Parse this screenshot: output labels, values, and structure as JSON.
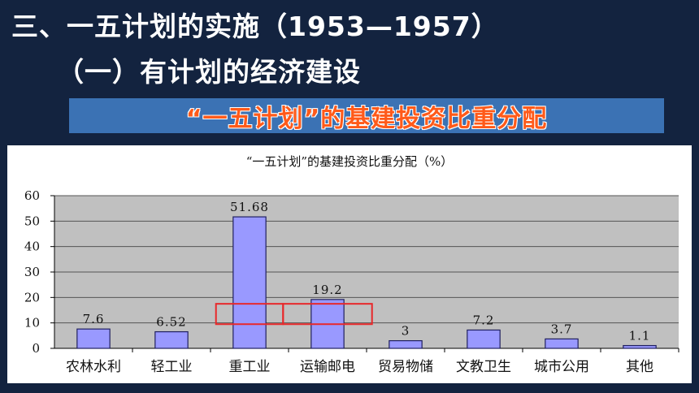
{
  "header": {
    "title": "三、一五计划的实施（1953—1957）",
    "subtitle": "（一）有计划的经济建设",
    "banner": "“一五计划”的基建投资比重分配"
  },
  "chart_data": {
    "type": "bar",
    "title": "“一五计划”的基建投资比重分配（%）",
    "categories": [
      "农林水利",
      "轻工业",
      "重工业",
      "运输邮电",
      "贸易物储",
      "文教卫生",
      "城市公用",
      "其他"
    ],
    "values": [
      7.6,
      6.52,
      51.68,
      19.2,
      3,
      7.2,
      3.7,
      1.1
    ],
    "value_labels": [
      "7.6",
      "6.52",
      "51.68",
      "19.2",
      "3",
      "7.2",
      "3.7",
      "1.1"
    ],
    "yticks": [
      "0",
      "10",
      "20",
      "30",
      "40",
      "50",
      "60"
    ],
    "ylim": [
      0,
      60
    ],
    "xlabel": "",
    "ylabel": "",
    "grid": true,
    "bar_color": "#9999ff",
    "plot_background": "#c0c0c0",
    "highlight_color": "#e8282a",
    "highlighted_categories": [
      "重工业",
      "运输邮电"
    ]
  }
}
